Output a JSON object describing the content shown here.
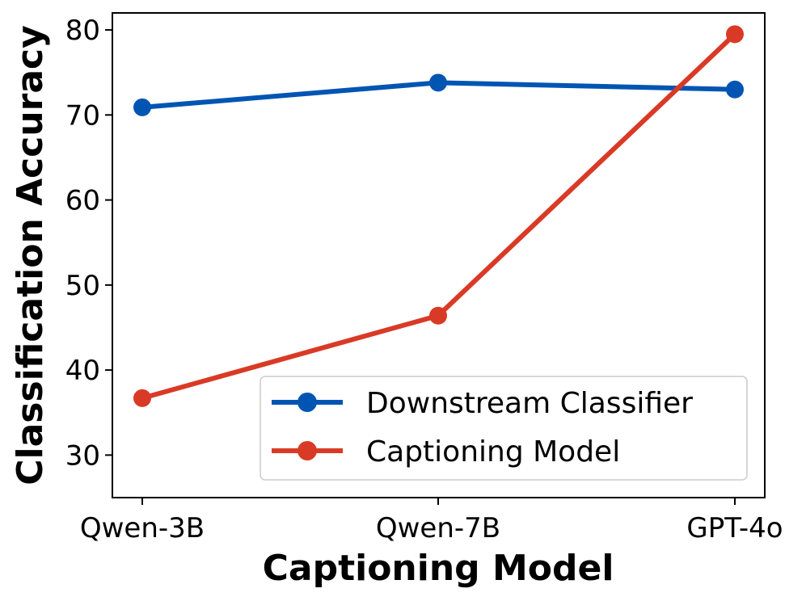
{
  "chart_data": {
    "type": "line",
    "categories": [
      "Qwen-3B",
      "Qwen-7B",
      "GPT-4o"
    ],
    "series": [
      {
        "name": "Downstream Classifier",
        "values": [
          70.9,
          73.8,
          73.0
        ],
        "color": "#0055b3"
      },
      {
        "name": "Captioning Model",
        "values": [
          36.7,
          46.4,
          79.5
        ],
        "color": "#d93a26"
      }
    ],
    "xlabel": "Captioning Model",
    "ylabel": "Classification Accuracy",
    "ylim": [
      25,
      82
    ],
    "yticks": [
      30,
      40,
      50,
      60,
      70,
      80
    ],
    "grid": false,
    "legend_position": "lower-right"
  }
}
